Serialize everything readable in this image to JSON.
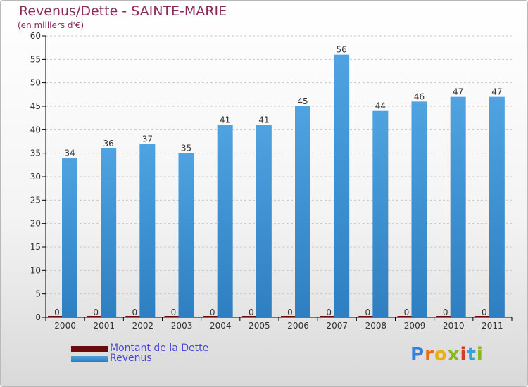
{
  "header": {
    "title": "Revenus/Dette - SAINTE-MARIE",
    "subtitle": "(en milliers d'€)"
  },
  "brand": {
    "name": "Proxiti",
    "letters": [
      "P",
      "r",
      "o",
      "x",
      "i",
      "t",
      "i"
    ],
    "letter_colors": [
      "#3b7fd6",
      "#e36d1f",
      "#e8b012",
      "#8ab81c",
      "#d43a2a",
      "#3aa0d8",
      "#8ab81c"
    ]
  },
  "colors": {
    "dette": "#6b0a0a",
    "revenus": "#4ea3e0",
    "revenus_dark": "#2e7fc1",
    "grid": "#c8c8c8",
    "axis": "#000000",
    "text": "#333333"
  },
  "chart_data": {
    "type": "bar",
    "title": "Revenus/Dette - SAINTE-MARIE",
    "ylabel": "(en milliers d'€)",
    "xlabel": "",
    "categories": [
      "2000",
      "2001",
      "2002",
      "2003",
      "2004",
      "2005",
      "2006",
      "2007",
      "2008",
      "2009",
      "2010",
      "2011"
    ],
    "series": [
      {
        "name": "Montant de la Dette",
        "values": [
          0,
          0,
          0,
          0,
          0,
          0,
          0,
          0,
          0,
          0,
          0,
          0
        ]
      },
      {
        "name": "Revenus",
        "values": [
          34,
          36,
          37,
          35,
          41,
          41,
          45,
          56,
          44,
          46,
          47,
          47
        ]
      }
    ],
    "ylim": [
      0,
      60
    ],
    "yticks": [
      0,
      5,
      10,
      15,
      20,
      25,
      30,
      35,
      40,
      45,
      50,
      55,
      60
    ],
    "grid": true,
    "legend_position": "bottom-left"
  }
}
